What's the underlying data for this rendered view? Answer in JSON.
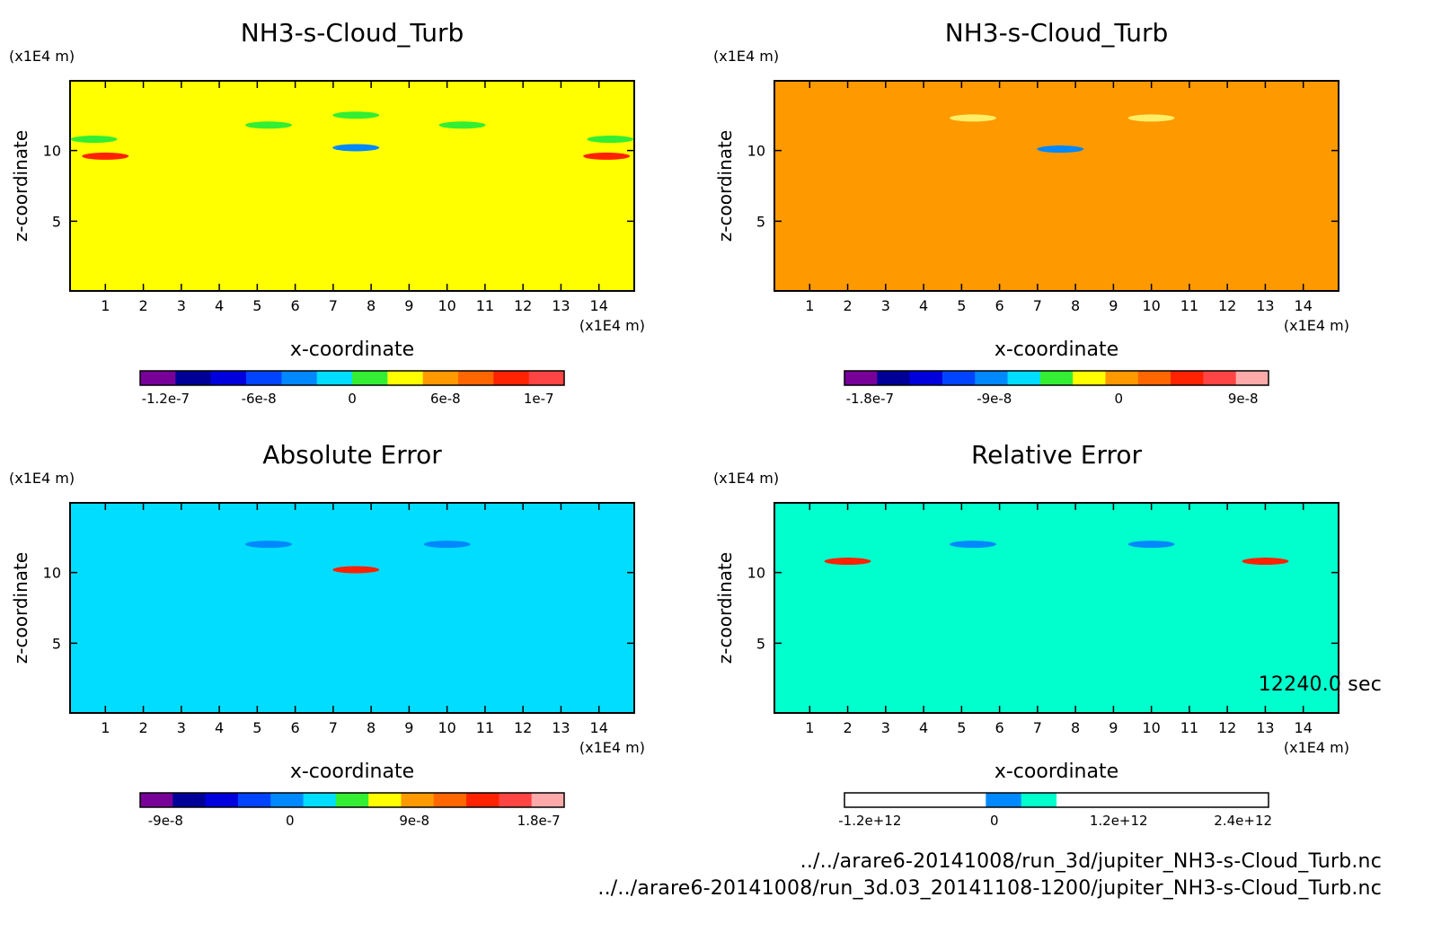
{
  "colors": {
    "panel_nh3_x_fill": "#ffff00",
    "panel_nh3_y_fill": "#ff9900",
    "panel_abs_fill": "#00ddff",
    "panel_rel_fill": "#00ffcc",
    "contour_green": "#33ee33",
    "contour_blue": "#0088ff",
    "contour_yellow": "#ffee66",
    "axis": "#000000"
  },
  "time_label": "12240.0 sec",
  "footer": {
    "file1": "../../arare6-20141008/run_3d/jupiter_NH3-s-Cloud_Turb.nc",
    "file2": "../../arare6-20141008/run_3d.03_20141108-1200/jupiter_NH3-s-Cloud_Turb.nc"
  },
  "chart_data": [
    {
      "type": "heatmap",
      "title": "NH3-s-Cloud_Turb",
      "xlabel": "x-coordinate",
      "ylabel": "z-coordinate",
      "x_unit": "(x1E4 m)",
      "y_unit": "(x1E4 m)",
      "xlim": [
        0.07,
        14.93
      ],
      "ylim": [
        0.07,
        14.93
      ],
      "xticks": [
        "1",
        "2",
        "3",
        "4",
        "5",
        "6",
        "7",
        "8",
        "9",
        "10",
        "11",
        "12",
        "13",
        "14"
      ],
      "yticks": [
        "5",
        "10"
      ],
      "colorbar": {
        "colors": [
          "#770099",
          "#000099",
          "#0000dd",
          "#0044ff",
          "#0088ff",
          "#00ddff",
          "#33ee33",
          "#ffff00",
          "#ff9900",
          "#ff6600",
          "#ff2200",
          "#ff4444"
        ],
        "labels": [
          "-1.2e-7",
          "-6e-8",
          "0",
          "6e-8",
          "1e-7"
        ]
      },
      "background_value": 0,
      "features": [
        {
          "x": 0.7,
          "z": 10.8,
          "level": "green"
        },
        {
          "x": 5.3,
          "z": 11.8,
          "level": "green"
        },
        {
          "x": 7.6,
          "z": 12.5,
          "level": "green"
        },
        {
          "x": 10.4,
          "z": 11.8,
          "level": "green"
        },
        {
          "x": 14.3,
          "z": 10.8,
          "level": "green"
        },
        {
          "x": 7.6,
          "z": 10.2,
          "level": "blue"
        },
        {
          "x": 1.0,
          "z": 9.6,
          "level": "red"
        },
        {
          "x": 14.2,
          "z": 9.6,
          "level": "red"
        }
      ]
    },
    {
      "type": "heatmap",
      "title": "NH3-s-Cloud_Turb",
      "xlabel": "x-coordinate",
      "ylabel": "z-coordinate",
      "x_unit": "(x1E4 m)",
      "y_unit": "(x1E4 m)",
      "xlim": [
        0.07,
        14.93
      ],
      "ylim": [
        0.07,
        14.93
      ],
      "xticks": [
        "1",
        "2",
        "3",
        "4",
        "5",
        "6",
        "7",
        "8",
        "9",
        "10",
        "11",
        "12",
        "13",
        "14"
      ],
      "yticks": [
        "5",
        "10"
      ],
      "colorbar": {
        "colors": [
          "#770099",
          "#000099",
          "#0000dd",
          "#0044ff",
          "#0088ff",
          "#00ddff",
          "#33ee33",
          "#ffff00",
          "#ff9900",
          "#ff6600",
          "#ff2200",
          "#ff4444",
          "#ffaaaa"
        ],
        "labels": [
          "-1.8e-7",
          "-9e-8",
          "0",
          "9e-8"
        ]
      },
      "background_value": 0,
      "features": [
        {
          "x": 5.3,
          "z": 12.3,
          "level": "yellow"
        },
        {
          "x": 10.0,
          "z": 12.3,
          "level": "yellow"
        },
        {
          "x": 7.6,
          "z": 10.1,
          "level": "blue"
        }
      ]
    },
    {
      "type": "heatmap",
      "title": "Absolute Error",
      "xlabel": "x-coordinate",
      "ylabel": "z-coordinate",
      "x_unit": "(x1E4 m)",
      "y_unit": "(x1E4 m)",
      "xlim": [
        0.07,
        14.93
      ],
      "ylim": [
        0.07,
        14.93
      ],
      "xticks": [
        "1",
        "2",
        "3",
        "4",
        "5",
        "6",
        "7",
        "8",
        "9",
        "10",
        "11",
        "12",
        "13",
        "14"
      ],
      "yticks": [
        "5",
        "10"
      ],
      "colorbar": {
        "colors": [
          "#770099",
          "#000099",
          "#0000dd",
          "#0044ff",
          "#0088ff",
          "#00ddff",
          "#33ee33",
          "#ffff00",
          "#ff9900",
          "#ff6600",
          "#ff2200",
          "#ff4444",
          "#ffaaaa"
        ],
        "labels": [
          "-9e-8",
          "0",
          "9e-8",
          "1.8e-7"
        ]
      },
      "background_value": 0,
      "features": [
        {
          "x": 5.3,
          "z": 12.0,
          "level": "blue"
        },
        {
          "x": 10.0,
          "z": 12.0,
          "level": "blue"
        },
        {
          "x": 7.6,
          "z": 10.2,
          "level": "red"
        }
      ]
    },
    {
      "type": "heatmap",
      "title": "Relative Error",
      "xlabel": "x-coordinate",
      "ylabel": "z-coordinate",
      "x_unit": "(x1E4 m)",
      "y_unit": "(x1E4 m)",
      "xlim": [
        0.07,
        14.93
      ],
      "ylim": [
        0.07,
        14.93
      ],
      "xticks": [
        "1",
        "2",
        "3",
        "4",
        "5",
        "6",
        "7",
        "8",
        "9",
        "10",
        "11",
        "12",
        "13",
        "14"
      ],
      "yticks": [
        "5",
        "10"
      ],
      "colorbar": {
        "colors": [
          "#ffffff",
          "#ffffff",
          "#ffffff",
          "#ffffff",
          "#0088ff",
          "#00ffcc",
          "#ffffff",
          "#ffffff",
          "#ffffff",
          "#ffffff",
          "#ffffff",
          "#ffffff"
        ],
        "labels": [
          "-1.2e+12",
          "0",
          "1.2e+12",
          "2.4e+12"
        ]
      },
      "background_value": 0,
      "features": [
        {
          "x": 5.3,
          "z": 12.0,
          "level": "blue"
        },
        {
          "x": 10.0,
          "z": 12.0,
          "level": "blue"
        },
        {
          "x": 2.0,
          "z": 10.8,
          "level": "red"
        },
        {
          "x": 13.0,
          "z": 10.8,
          "level": "red"
        }
      ]
    }
  ]
}
